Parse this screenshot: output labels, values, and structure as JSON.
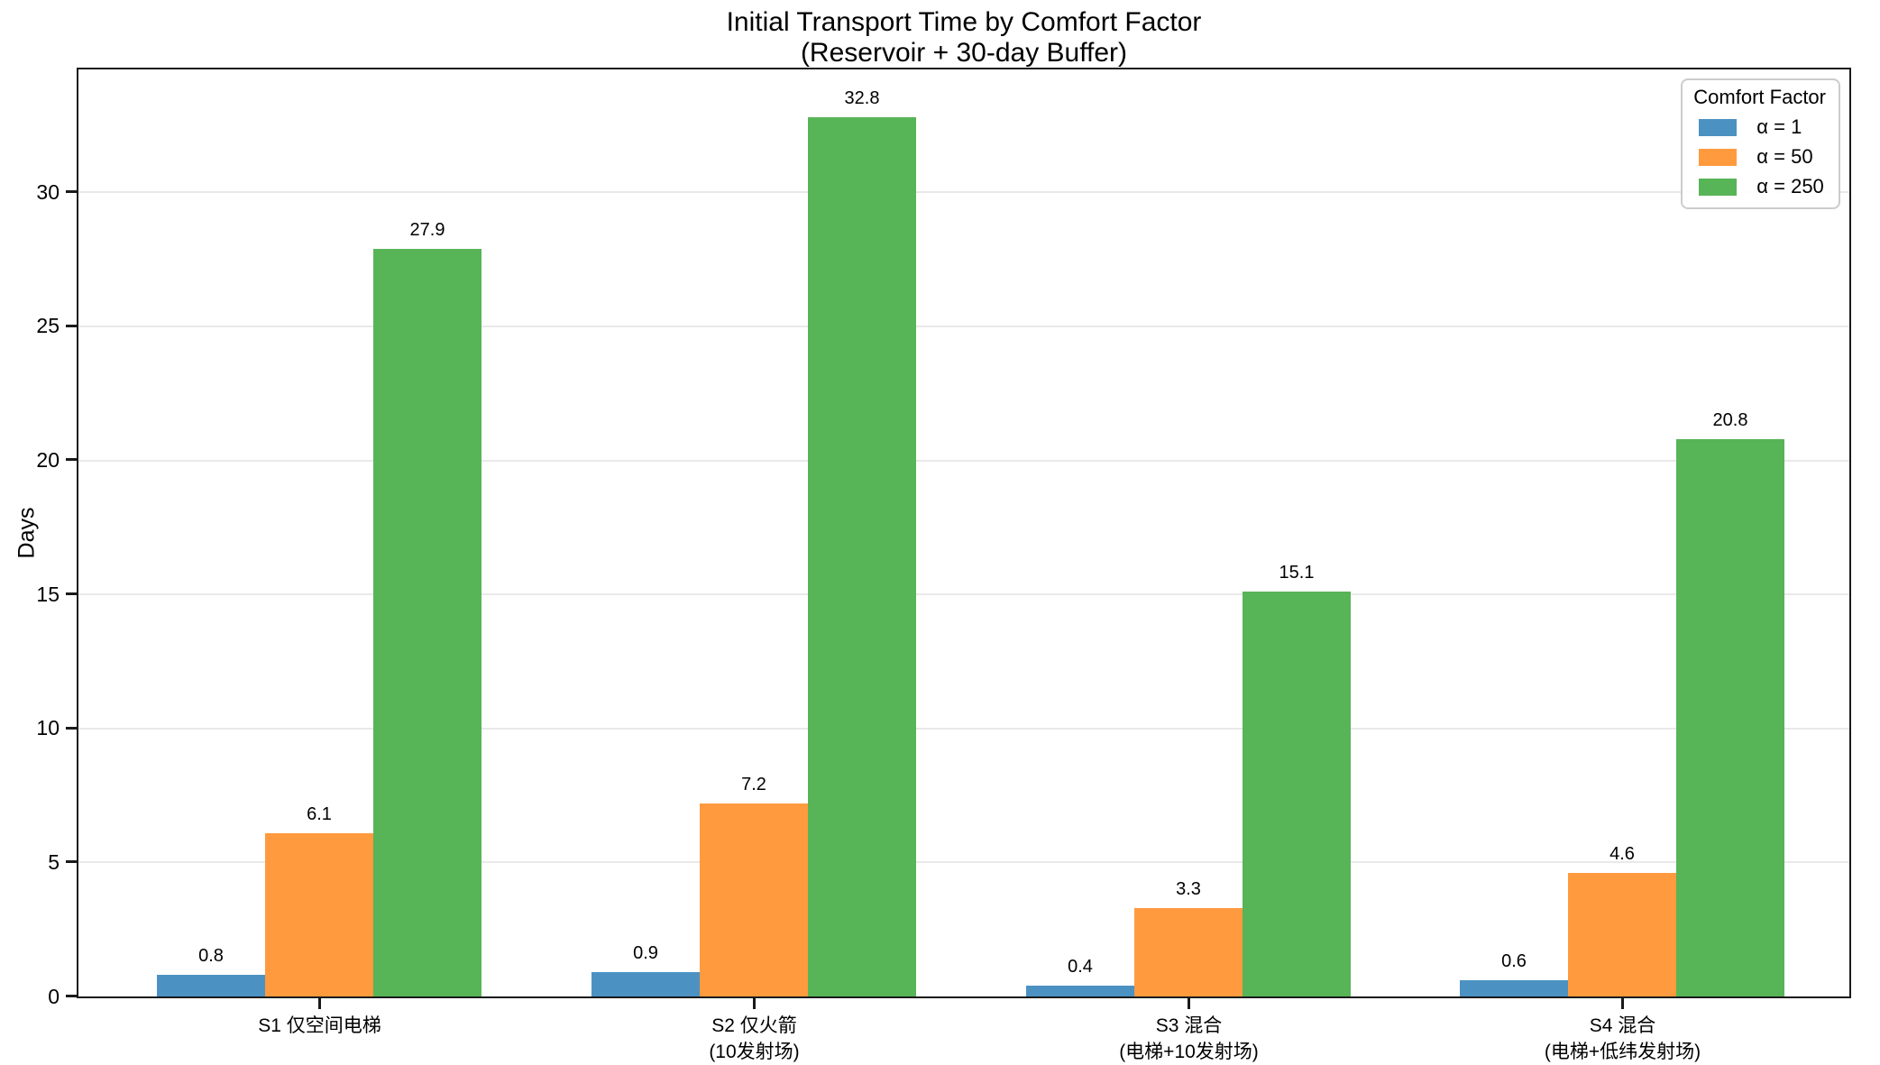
{
  "title": {
    "line1": "Initial Transport Time by Comfort Factor",
    "line2": "(Reservoir + 30-day Buffer)"
  },
  "style": {
    "spine_color": "#1a1a1a",
    "grid_color": "#e9e9e9",
    "background": "#ffffff",
    "text_color": "#000000",
    "legend_border": "#cccccc"
  },
  "chart_data": {
    "type": "bar",
    "title": "Initial Transport Time by Comfort Factor\n(Reservoir + 30-day Buffer)",
    "xlabel": "",
    "ylabel": "Days",
    "ylim": [
      0,
      34.55
    ],
    "yticks": [
      0,
      5,
      10,
      15,
      20,
      25,
      30
    ],
    "grid": true,
    "legend_title": "Comfort Factor",
    "legend_position": "upper right",
    "bar_labels": true,
    "categories": [
      "S1 仅空间电梯",
      "S2 仅火箭\n(10发射场)",
      "S3 混合\n(电梯+10发射场)",
      "S4 混合\n(电梯+低纬发射场)"
    ],
    "series": [
      {
        "name": "α = 1",
        "color": "#4B92C3",
        "values": [
          0.8,
          0.9,
          0.4,
          0.6
        ]
      },
      {
        "name": "α = 50",
        "color": "#FF9A3E",
        "values": [
          6.1,
          7.2,
          3.3,
          4.6
        ]
      },
      {
        "name": "α = 250",
        "color": "#57B457",
        "values": [
          27.9,
          32.8,
          15.1,
          20.8
        ]
      }
    ]
  }
}
